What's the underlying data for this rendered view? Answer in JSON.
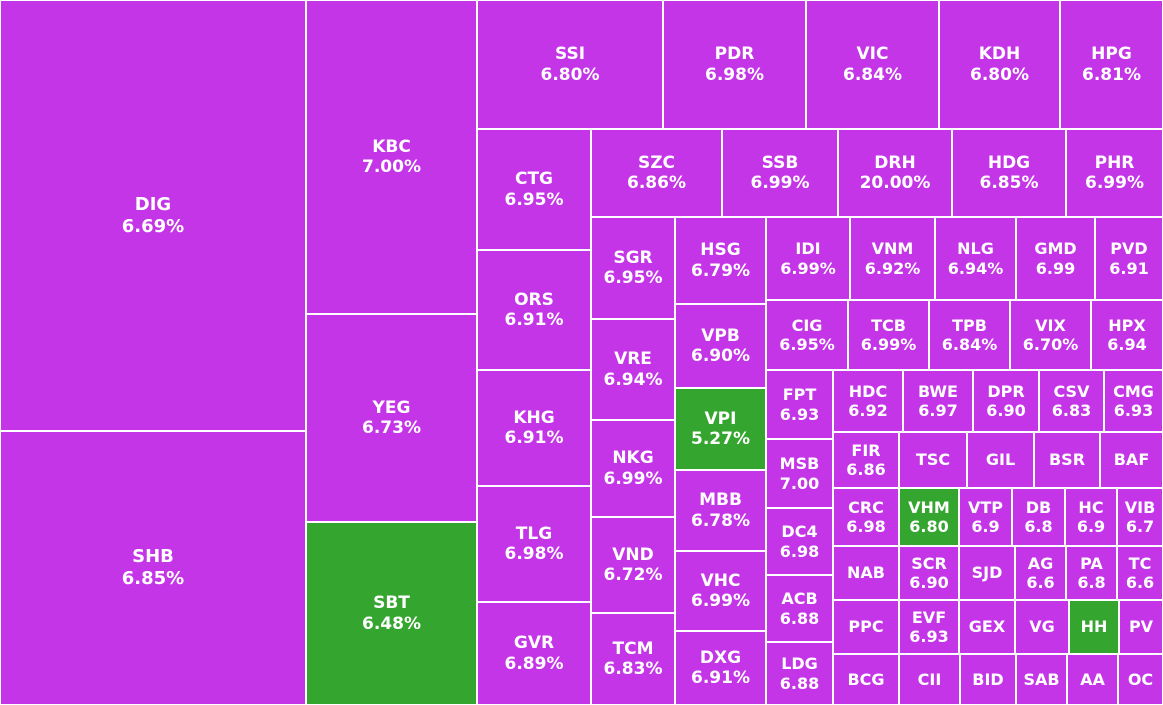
{
  "colors": {
    "up": "#c435e8",
    "down": "#34a52f",
    "border": "#ffffff",
    "text": "#ffffff"
  },
  "chart_data": {
    "type": "treemap",
    "title": "",
    "tiles": [
      {
        "ticker": "DIG",
        "value": "6.69%",
        "color": "up"
      },
      {
        "ticker": "SHB",
        "value": "6.85%",
        "color": "up"
      },
      {
        "ticker": "KBC",
        "value": "7.00%",
        "color": "up"
      },
      {
        "ticker": "YEG",
        "value": "6.73%",
        "color": "up"
      },
      {
        "ticker": "SBT",
        "value": "6.48%",
        "color": "down"
      },
      {
        "ticker": "SSI",
        "value": "6.80%",
        "color": "up"
      },
      {
        "ticker": "PDR",
        "value": "6.98%",
        "color": "up"
      },
      {
        "ticker": "VIC",
        "value": "6.84%",
        "color": "up"
      },
      {
        "ticker": "KDH",
        "value": "6.80%",
        "color": "up"
      },
      {
        "ticker": "HPG",
        "value": "6.81%",
        "color": "up"
      },
      {
        "ticker": "CTG",
        "value": "6.95%",
        "color": "up"
      },
      {
        "ticker": "ORS",
        "value": "6.91%",
        "color": "up"
      },
      {
        "ticker": "KHG",
        "value": "6.91%",
        "color": "up"
      },
      {
        "ticker": "TLG",
        "value": "6.98%",
        "color": "up"
      },
      {
        "ticker": "GVR",
        "value": "6.89%",
        "color": "up"
      },
      {
        "ticker": "SZC",
        "value": "6.86%",
        "color": "up"
      },
      {
        "ticker": "SSB",
        "value": "6.99%",
        "color": "up"
      },
      {
        "ticker": "DRH",
        "value": "20.00%",
        "color": "up"
      },
      {
        "ticker": "HDG",
        "value": "6.85%",
        "color": "up"
      },
      {
        "ticker": "PHR",
        "value": "6.99%",
        "color": "up"
      },
      {
        "ticker": "SGR",
        "value": "6.95%",
        "color": "up"
      },
      {
        "ticker": "VRE",
        "value": "6.94%",
        "color": "up"
      },
      {
        "ticker": "NKG",
        "value": "6.99%",
        "color": "up"
      },
      {
        "ticker": "VND",
        "value": "6.72%",
        "color": "up"
      },
      {
        "ticker": "TCM",
        "value": "6.83%",
        "color": "up"
      },
      {
        "ticker": "HSG",
        "value": "6.79%",
        "color": "up"
      },
      {
        "ticker": "VPB",
        "value": "6.90%",
        "color": "up"
      },
      {
        "ticker": "VPI",
        "value": "5.27%",
        "color": "down"
      },
      {
        "ticker": "MBB",
        "value": "6.78%",
        "color": "up"
      },
      {
        "ticker": "VHC",
        "value": "6.99%",
        "color": "up"
      },
      {
        "ticker": "DXG",
        "value": "6.91%",
        "color": "up"
      },
      {
        "ticker": "IDI",
        "value": "6.99%",
        "color": "up"
      },
      {
        "ticker": "VNM",
        "value": "6.92%",
        "color": "up"
      },
      {
        "ticker": "NLG",
        "value": "6.94%",
        "color": "up"
      },
      {
        "ticker": "GMD",
        "value": "6.99",
        "color": "up"
      },
      {
        "ticker": "PVD",
        "value": "6.91",
        "color": "up"
      },
      {
        "ticker": "CIG",
        "value": "6.95%",
        "color": "up"
      },
      {
        "ticker": "TCB",
        "value": "6.99%",
        "color": "up"
      },
      {
        "ticker": "TPB",
        "value": "6.84%",
        "color": "up"
      },
      {
        "ticker": "VIX",
        "value": "6.70%",
        "color": "up"
      },
      {
        "ticker": "HPX",
        "value": "6.94",
        "color": "up"
      },
      {
        "ticker": "FPT",
        "value": "6.93",
        "color": "up"
      },
      {
        "ticker": "HDC",
        "value": "6.92",
        "color": "up"
      },
      {
        "ticker": "BWE",
        "value": "6.97",
        "color": "up"
      },
      {
        "ticker": "DPR",
        "value": "6.90",
        "color": "up"
      },
      {
        "ticker": "CSV",
        "value": "6.83",
        "color": "up"
      },
      {
        "ticker": "CMG",
        "value": "6.93",
        "color": "up"
      },
      {
        "ticker": "MSB",
        "value": "7.00",
        "color": "up"
      },
      {
        "ticker": "FIR",
        "value": "6.86",
        "color": "up"
      },
      {
        "ticker": "TSC",
        "value": "",
        "color": "up"
      },
      {
        "ticker": "GIL",
        "value": "",
        "color": "up"
      },
      {
        "ticker": "BSR",
        "value": "",
        "color": "up"
      },
      {
        "ticker": "BAF",
        "value": "",
        "color": "up"
      },
      {
        "ticker": "DC4",
        "value": "6.98",
        "color": "up"
      },
      {
        "ticker": "CRC",
        "value": "6.98",
        "color": "up"
      },
      {
        "ticker": "VHM",
        "value": "6.80",
        "color": "down"
      },
      {
        "ticker": "VTP",
        "value": "6.9",
        "color": "up"
      },
      {
        "ticker": "DB",
        "value": "6.8",
        "color": "up"
      },
      {
        "ticker": "HC",
        "value": "6.9",
        "color": "up"
      },
      {
        "ticker": "VIB",
        "value": "6.7",
        "color": "up"
      },
      {
        "ticker": "ACB",
        "value": "6.88",
        "color": "up"
      },
      {
        "ticker": "NAB",
        "value": "",
        "color": "up"
      },
      {
        "ticker": "SCR",
        "value": "6.90",
        "color": "up"
      },
      {
        "ticker": "SJD",
        "value": "",
        "color": "up"
      },
      {
        "ticker": "AG",
        "value": "6.6",
        "color": "up"
      },
      {
        "ticker": "PA",
        "value": "6.8",
        "color": "up"
      },
      {
        "ticker": "TC",
        "value": "6.6",
        "color": "up"
      },
      {
        "ticker": "LDG",
        "value": "6.88",
        "color": "up"
      },
      {
        "ticker": "PPC",
        "value": "",
        "color": "up"
      },
      {
        "ticker": "EVF",
        "value": "6.93",
        "color": "up"
      },
      {
        "ticker": "GEX",
        "value": "",
        "color": "up"
      },
      {
        "ticker": "VG",
        "value": "",
        "color": "up"
      },
      {
        "ticker": "HH",
        "value": "",
        "color": "down"
      },
      {
        "ticker": "PV",
        "value": "",
        "color": "up"
      },
      {
        "ticker": "BCG",
        "value": "",
        "color": "up"
      },
      {
        "ticker": "CII",
        "value": "",
        "color": "up"
      },
      {
        "ticker": "BID",
        "value": "",
        "color": "up"
      },
      {
        "ticker": "SAB",
        "value": "",
        "color": "up"
      },
      {
        "ticker": "AA",
        "value": "",
        "color": "up"
      },
      {
        "ticker": "OC",
        "value": "",
        "color": "up"
      }
    ]
  }
}
